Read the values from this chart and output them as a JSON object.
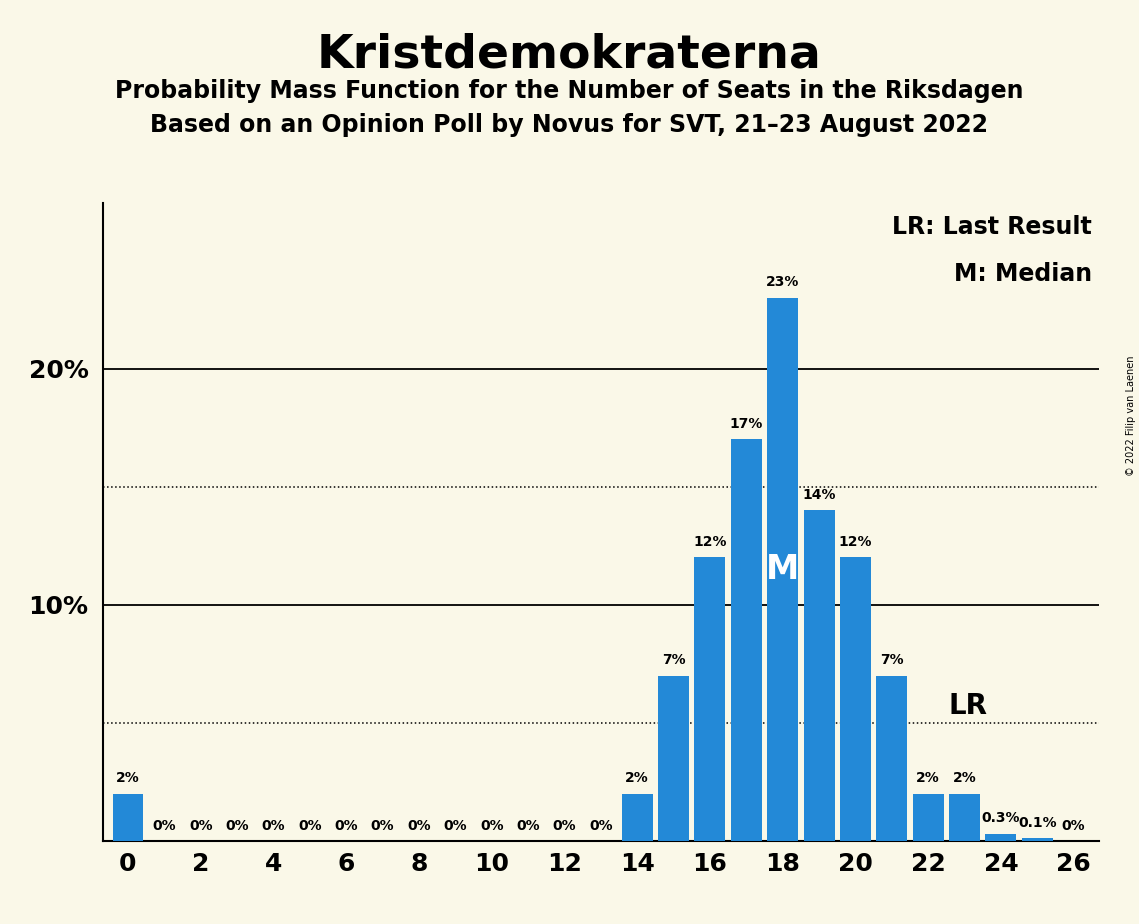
{
  "title": "Kristdemokraterna",
  "subtitle1": "Probability Mass Function for the Number of Seats in the Riksdagen",
  "subtitle2": "Based on an Opinion Poll by Novus for SVT, 21–23 August 2022",
  "copyright": "© 2022 Filip van Laenen",
  "background_color": "#faf8e8",
  "bar_color": "#2389d7",
  "seats": [
    0,
    1,
    2,
    3,
    4,
    5,
    6,
    7,
    8,
    9,
    10,
    11,
    12,
    13,
    14,
    15,
    16,
    17,
    18,
    19,
    20,
    21,
    22,
    23,
    24,
    25,
    26
  ],
  "probabilities": [
    2,
    0,
    0,
    0,
    0,
    0,
    0,
    0,
    0,
    0,
    0,
    0,
    0,
    0,
    2,
    7,
    12,
    17,
    23,
    14,
    12,
    7,
    2,
    2,
    0.3,
    0.1,
    0
  ],
  "labels": [
    "2%",
    "0%",
    "0%",
    "0%",
    "0%",
    "0%",
    "0%",
    "0%",
    "0%",
    "0%",
    "0%",
    "0%",
    "0%",
    "0%",
    "2%",
    "7%",
    "12%",
    "17%",
    "23%",
    "14%",
    "12%",
    "7%",
    "2%",
    "2%",
    "0.3%",
    "0.1%",
    "0%"
  ],
  "show_label": [
    true,
    true,
    true,
    true,
    true,
    true,
    true,
    true,
    true,
    true,
    true,
    true,
    true,
    true,
    true,
    true,
    true,
    true,
    true,
    true,
    true,
    true,
    true,
    true,
    true,
    true,
    true
  ],
  "median_seat": 18,
  "last_result_seat": 22,
  "last_result_value": 5.0,
  "xlim": [
    -0.7,
    26.7
  ],
  "ylim": [
    0,
    27
  ],
  "dotted_lines": [
    5.0,
    15.0
  ],
  "solid_lines": [
    10.0,
    20.0
  ],
  "legend_lr": "LR: Last Result",
  "legend_m": "M: Median",
  "title_fontsize": 34,
  "subtitle_fontsize": 17,
  "tick_fontsize": 18,
  "label_fontsize": 10
}
